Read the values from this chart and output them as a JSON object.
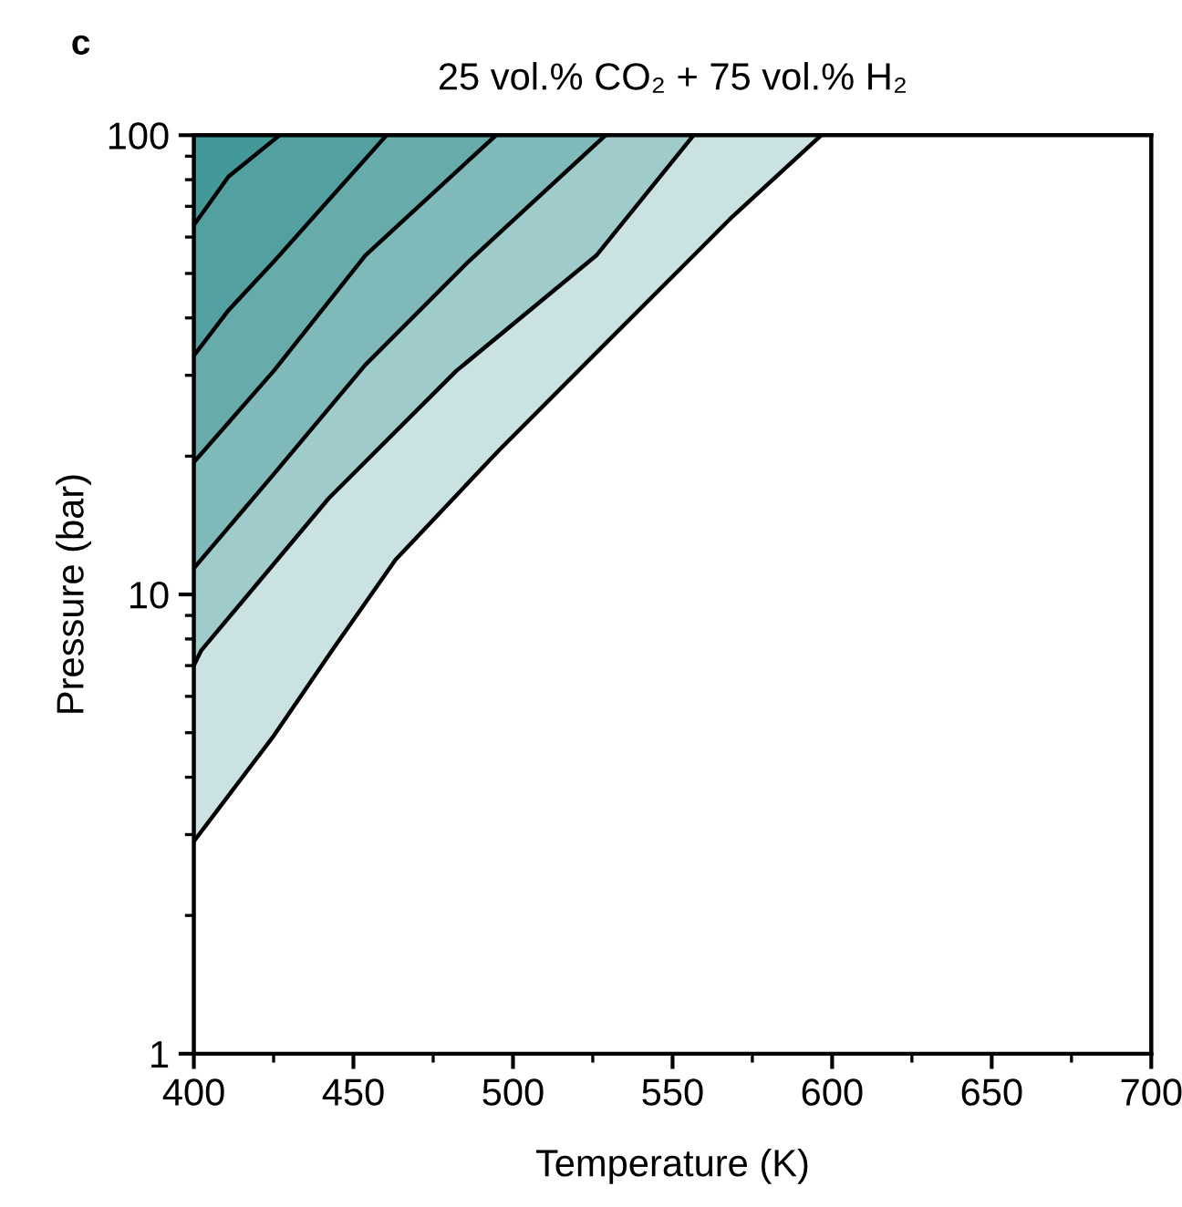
{
  "chart_data": {
    "type": "line",
    "title": "25 vol.% CO₂ + 75 vol.% H₂",
    "xlabel": "Temperature (K)",
    "ylabel": "Pressure (bar)",
    "annotations": [
      "c"
    ],
    "log": "y",
    "xlim": [
      400,
      700
    ],
    "xticks": [
      400,
      450,
      500,
      550,
      600,
      650,
      700
    ],
    "ylim": [
      1,
      100
    ],
    "yticks": [
      1,
      10,
      100
    ],
    "grid": false,
    "legend": false,
    "marker": "none",
    "line_style": "solid",
    "series": [
      {
        "color": "#000000",
        "x": [
          400,
          410.9,
          426.9
        ],
        "values": [
          63.7,
          81.3,
          100
        ]
      },
      {
        "color": "#000000",
        "x": [
          400,
          410.9,
          425.1,
          460.4
        ],
        "values": [
          33.1,
          41.6,
          53.1,
          100
        ]
      },
      {
        "color": "#000000",
        "x": [
          400,
          425.1,
          453.7,
          494.7
        ],
        "values": [
          19.4,
          30.7,
          54.7,
          100
        ]
      },
      {
        "color": "#000000",
        "x": [
          400,
          425.1,
          453.7,
          486.1,
          529
        ],
        "values": [
          11.4,
          18.3,
          31.6,
          53.1,
          100
        ]
      },
      {
        "color": "#000000",
        "x": [
          400,
          402.3,
          442.3,
          482.3,
          526.1,
          556.6
        ],
        "values": [
          7.0,
          7.55,
          16.2,
          30.7,
          54.7,
          100
        ]
      },
      {
        "color": "#000000",
        "x": [
          400,
          425.1,
          443.3,
          463.2,
          495.6,
          529.9,
          556.6,
          568,
          596.6
        ],
        "values": [
          2.9,
          4.93,
          7.55,
          11.9,
          20.6,
          35.7,
          54.7,
          65.7,
          100
        ]
      }
    ]
  }
}
